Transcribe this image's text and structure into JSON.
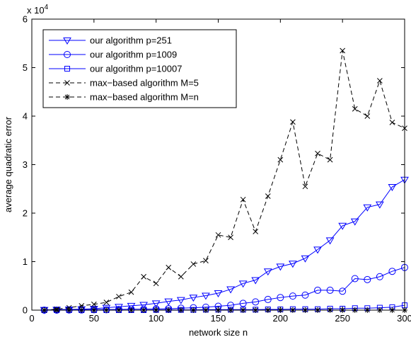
{
  "chart_data": {
    "type": "line",
    "xlabel": "network size n",
    "ylabel": "average quadratic error",
    "y_multiplier": "x 10",
    "y_exponent": "4",
    "xlim": [
      0,
      300
    ],
    "ylim": [
      0,
      6
    ],
    "x_ticks": [
      0,
      50,
      100,
      150,
      200,
      250,
      300
    ],
    "y_ticks": [
      0,
      1,
      2,
      3,
      4,
      5,
      6
    ],
    "x_tick_labels": [
      "0",
      "50",
      "100",
      "150",
      "200",
      "250",
      "300"
    ],
    "y_tick_labels": [
      "0",
      "1",
      "2",
      "3",
      "4",
      "5",
      "6"
    ],
    "grid": false,
    "legend_position": "top-left",
    "x": [
      10,
      20,
      30,
      40,
      50,
      60,
      70,
      80,
      90,
      100,
      110,
      120,
      130,
      140,
      150,
      160,
      170,
      180,
      190,
      200,
      210,
      220,
      230,
      240,
      250,
      260,
      270,
      280,
      290,
      300
    ],
    "series": [
      {
        "name": "our algorithm p=251",
        "color": "#0000ff",
        "line_style": "solid",
        "marker": "triangle-down",
        "values": [
          0.005,
          0.01,
          0.015,
          0.02,
          0.03,
          0.05,
          0.07,
          0.09,
          0.11,
          0.14,
          0.18,
          0.21,
          0.26,
          0.3,
          0.35,
          0.43,
          0.55,
          0.62,
          0.8,
          0.9,
          0.96,
          1.07,
          1.25,
          1.44,
          1.74,
          1.83,
          2.12,
          2.18,
          2.54,
          2.69
        ]
      },
      {
        "name": "our algorithm p=1009",
        "color": "#0000ff",
        "line_style": "solid",
        "marker": "circle",
        "values": [
          0.0,
          0.0,
          0.005,
          0.005,
          0.01,
          0.01,
          0.015,
          0.02,
          0.02,
          0.025,
          0.03,
          0.04,
          0.05,
          0.06,
          0.08,
          0.1,
          0.14,
          0.17,
          0.22,
          0.26,
          0.29,
          0.31,
          0.41,
          0.41,
          0.39,
          0.65,
          0.63,
          0.69,
          0.8,
          0.88
        ]
      },
      {
        "name": "our algorithm p=10007",
        "color": "#0000ff",
        "line_style": "solid",
        "marker": "square",
        "values": [
          0.0,
          0.0,
          0.0,
          0.0,
          0.0,
          0.0,
          0.0,
          0.0,
          0.0,
          0.005,
          0.005,
          0.005,
          0.005,
          0.01,
          0.01,
          0.01,
          0.01,
          0.01,
          0.015,
          0.015,
          0.02,
          0.02,
          0.02,
          0.03,
          0.03,
          0.04,
          0.04,
          0.05,
          0.06,
          0.1
        ]
      },
      {
        "name": "max−based algorithm M=5",
        "color": "#000000",
        "line_style": "dashed",
        "marker": "x",
        "values": [
          0.0,
          0.02,
          0.05,
          0.09,
          0.12,
          0.16,
          0.28,
          0.37,
          0.69,
          0.55,
          0.88,
          0.69,
          0.95,
          1.02,
          1.55,
          1.5,
          2.28,
          1.62,
          2.35,
          3.1,
          3.88,
          2.55,
          3.23,
          3.1,
          5.35,
          4.15,
          4.0,
          4.73,
          3.87,
          3.75
        ]
      },
      {
        "name": "max−based algorithm M=n",
        "color": "#000000",
        "line_style": "dashed",
        "marker": "asterisk",
        "values": [
          0.0,
          0.0,
          0.0,
          0.0,
          0.0,
          0.0,
          0.0,
          0.0,
          0.0,
          0.0,
          0.0,
          0.0,
          0.0,
          0.0,
          0.0,
          0.0,
          0.0,
          0.0,
          0.0,
          0.0,
          0.0,
          0.0,
          0.0,
          0.0,
          0.0,
          0.0,
          0.0,
          0.0,
          0.0,
          0.0
        ]
      }
    ]
  }
}
